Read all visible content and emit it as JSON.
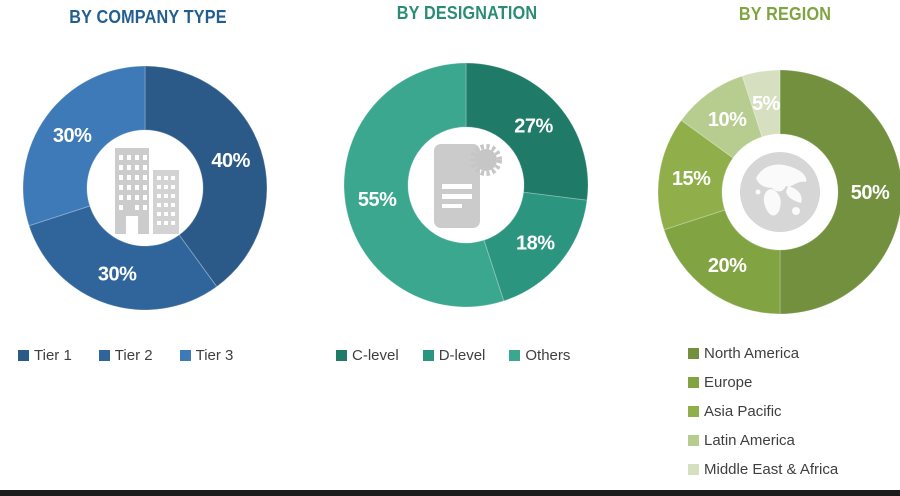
{
  "page": {
    "background": "#FFFFFF",
    "bottom_bar_color": "#1B1B1B",
    "legend_text_color": "#3F3F3F",
    "percent_label_color": "#FFFFFF",
    "center_icon_color": "#CCCCCC"
  },
  "chart_data": [
    {
      "type": "pie",
      "title": "BY COMPANY TYPE",
      "title_color": "#235E91",
      "categories": [
        "Tier 1",
        "Tier 2",
        "Tier 3"
      ],
      "values": [
        40,
        30,
        30
      ],
      "data_labels": [
        "40%",
        "30%",
        "30%"
      ],
      "colors": [
        "#2B5A88",
        "#30659C",
        "#3E7AB7"
      ],
      "center_icon": "building-icon",
      "legend_position": "bottom-horizontal",
      "donut": true,
      "donut_hole_ratio": 0.475,
      "start_angle_deg": 0,
      "direction": "clockwise"
    },
    {
      "type": "pie",
      "title": "BY DESIGNATION",
      "title_color": "#2B8C75",
      "categories": [
        "C-level",
        "D-level",
        "Others"
      ],
      "values": [
        27,
        18,
        55
      ],
      "data_labels": [
        "27%",
        "18%",
        "55%"
      ],
      "colors": [
        "#1F7A68",
        "#2B9580",
        "#3AA78E"
      ],
      "center_icon": "certificate-icon",
      "legend_position": "bottom-horizontal",
      "donut": true,
      "donut_hole_ratio": 0.475,
      "start_angle_deg": 0,
      "direction": "clockwise"
    },
    {
      "type": "pie",
      "title": "BY REGION",
      "title_color": "#7FA442",
      "categories": [
        "North America",
        "Europe",
        "Asia Pacific",
        "Latin America",
        "Middle East & Africa"
      ],
      "values": [
        50,
        20,
        15,
        10,
        5
      ],
      "data_labels": [
        "50%",
        "20%",
        "15%",
        "10%",
        "5%"
      ],
      "colors": [
        "#72903D",
        "#81A342",
        "#90AF4B",
        "#B7CC8F",
        "#D6E0C0"
      ],
      "center_icon": "globe-icon",
      "legend_position": "bottom-vertical",
      "donut": true,
      "donut_hole_ratio": 0.475,
      "start_angle_deg": 0,
      "direction": "clockwise"
    }
  ]
}
